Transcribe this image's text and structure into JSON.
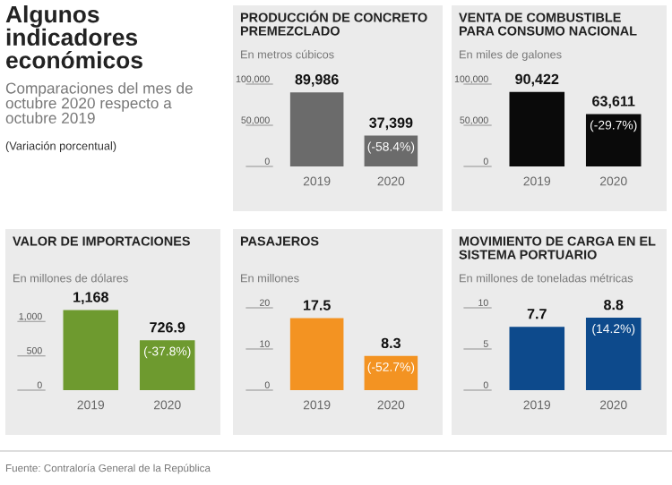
{
  "chart_data": [
    {
      "type": "other",
      "title": "Algunos indicadores económicos",
      "subtitle": "Comparaciones del mes de octubre 2020 respecto a octubre 2019",
      "annotations": [
        "(Variación porcentual)",
        "Fuente: Contraloría General de la República"
      ]
    },
    {
      "type": "bar",
      "title": "PRODUCCIÓN DE CONCRETO PREMEZCLADO",
      "subtitle": "En metros cúbicos",
      "categories": [
        "2019",
        "2020"
      ],
      "values": [
        89986,
        37399
      ],
      "color": "#6b6b6b",
      "ylim": [
        0,
        100000
      ],
      "yticks": [
        0,
        {
          "value": 50000,
          "label": "50,000"
        },
        {
          "value": 100000,
          "label": "100,000"
        }
      ],
      "value_labels": [
        "89,986",
        "37,399"
      ],
      "annotations": [
        {
          "text": "(-58.4%)",
          "x": "2020",
          "y": 37399
        }
      ]
    },
    {
      "type": "bar",
      "title": "VENTA DE COMBUSTIBLE PARA CONSUMO NACIONAL",
      "subtitle": "En miles de galones",
      "categories": [
        "2019",
        "2020"
      ],
      "values": [
        90422,
        63611
      ],
      "color": "#0a0a0a",
      "ylim": [
        0,
        100000
      ],
      "yticks": [
        0,
        {
          "value": 50000,
          "label": "50,000"
        },
        {
          "value": 100000,
          "label": "100,000"
        }
      ],
      "value_labels": [
        "90,422",
        "63,611"
      ],
      "annotations": [
        {
          "text": "(-29.7%)",
          "x": "2020",
          "y": 63611
        }
      ]
    },
    {
      "type": "bar",
      "title": "VALOR DE IMPORTACIONES",
      "subtitle": "En millones de dólares",
      "categories": [
        "2019",
        "2020"
      ],
      "values": [
        1168,
        726.9
      ],
      "color": "#6e9a2f",
      "ylim": [
        0,
        1200
      ],
      "yticks": [
        0,
        500,
        {
          "value": 1000,
          "label": "1,000"
        }
      ],
      "value_labels": [
        "1,168",
        "726.9"
      ],
      "annotations": [
        {
          "text": "(-37.8%)",
          "x": "2020",
          "y": 726.9
        }
      ]
    },
    {
      "type": "bar",
      "title": "PASAJEROS",
      "subtitle": "En millones",
      "categories": [
        "2019",
        "2020"
      ],
      "values": [
        17.5,
        8.3
      ],
      "color": "#f39322",
      "ylim": [
        0,
        20
      ],
      "yticks": [
        0,
        10,
        20
      ],
      "value_labels": [
        "17.5",
        "8.3"
      ],
      "annotations": [
        {
          "text": "(-52.7%)",
          "x": "2020",
          "y": 8.3
        }
      ]
    },
    {
      "type": "bar",
      "title": "MOVIMIENTO DE CARGA EN EL SISTEMA PORTUARIO",
      "subtitle": "En millones de toneladas métricas",
      "categories": [
        "2019",
        "2020"
      ],
      "values": [
        7.7,
        8.8
      ],
      "color": "#0d4a8c",
      "ylim": [
        0,
        10
      ],
      "yticks": [
        0,
        5,
        10
      ],
      "value_labels": [
        "7.7",
        "8.8"
      ],
      "annotations": [
        {
          "text": "(14.2%)",
          "x": "2020",
          "y": 8.8
        }
      ]
    }
  ]
}
